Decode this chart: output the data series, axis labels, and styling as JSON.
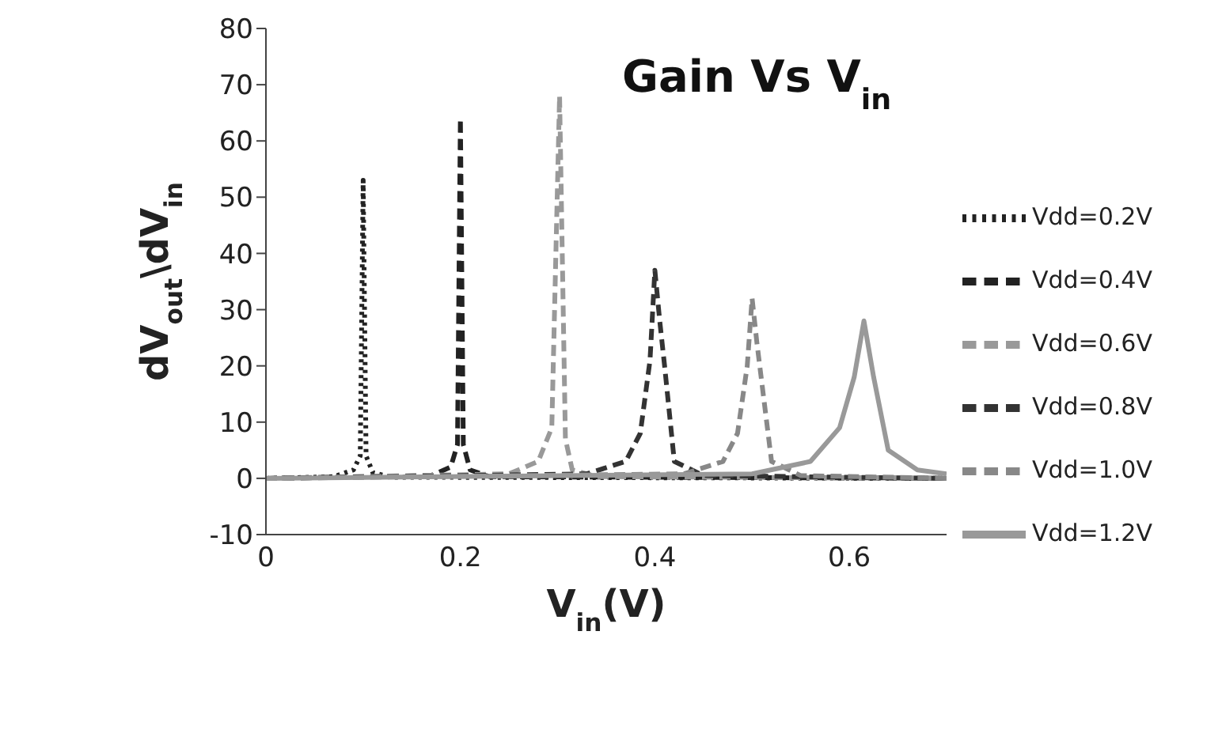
{
  "chart_data": {
    "type": "line",
    "title": "Gain Vs V$_{in}$",
    "xlabel": "V$_{in}$(V)",
    "ylabel": "dV$_{out}$\\dV$_{in}$",
    "xlim": [
      0,
      0.7
    ],
    "xticks": [
      0,
      0.2,
      0.4,
      0.6
    ],
    "ylim": [
      -10,
      80
    ],
    "yticks": [
      -10,
      0,
      10,
      20,
      30,
      40,
      50,
      60,
      70,
      80
    ],
    "legend": "right",
    "marker": "none",
    "series": [
      {
        "name": "Vdd=0.2V",
        "color": "#222222",
        "line_style": "dotted",
        "x": [
          0,
          0.07,
          0.09,
          0.097,
          0.1,
          0.103,
          0.11,
          0.13,
          0.7
        ],
        "values": [
          0,
          0.3,
          1.5,
          4,
          53,
          4,
          1,
          0.2,
          0
        ]
      },
      {
        "name": "Vdd=0.4V",
        "color": "#222222",
        "line_style": "dashed",
        "x": [
          0,
          0.17,
          0.19,
          0.197,
          0.2,
          0.203,
          0.21,
          0.23,
          0.7
        ],
        "values": [
          0,
          0.5,
          2,
          6,
          64,
          6,
          1.5,
          0.3,
          0
        ]
      },
      {
        "name": "Vdd=0.6V",
        "color": "#999999",
        "line_style": "dashed",
        "x": [
          0,
          0.25,
          0.28,
          0.294,
          0.302,
          0.308,
          0.315,
          0.34,
          0.7
        ],
        "values": [
          0,
          0.8,
          3,
          9,
          68,
          7,
          1.5,
          0.3,
          0
        ]
      },
      {
        "name": "Vdd=0.8V",
        "color": "#333333",
        "line_style": "dashed",
        "x": [
          0,
          0.33,
          0.37,
          0.385,
          0.395,
          0.4,
          0.405,
          0.41,
          0.42,
          0.45,
          0.7
        ],
        "values": [
          0,
          0.8,
          3,
          8,
          21,
          37,
          28,
          20,
          3,
          0.5,
          0
        ]
      },
      {
        "name": "Vdd=1.0V",
        "color": "#888888",
        "line_style": "dashed",
        "x": [
          0,
          0.43,
          0.47,
          0.485,
          0.495,
          0.5,
          0.505,
          0.51,
          0.52,
          0.55,
          0.7
        ],
        "values": [
          0,
          0.8,
          3,
          8,
          20,
          32,
          24,
          17,
          3,
          0.5,
          0
        ]
      },
      {
        "name": "Vdd=1.2V",
        "color": "#999999",
        "line_style": "solid",
        "x": [
          0,
          0.5,
          0.56,
          0.59,
          0.605,
          0.615,
          0.625,
          0.64,
          0.67,
          0.7
        ],
        "values": [
          0,
          0.8,
          3,
          9,
          18,
          28,
          18,
          5,
          1.5,
          0.8
        ]
      }
    ]
  }
}
